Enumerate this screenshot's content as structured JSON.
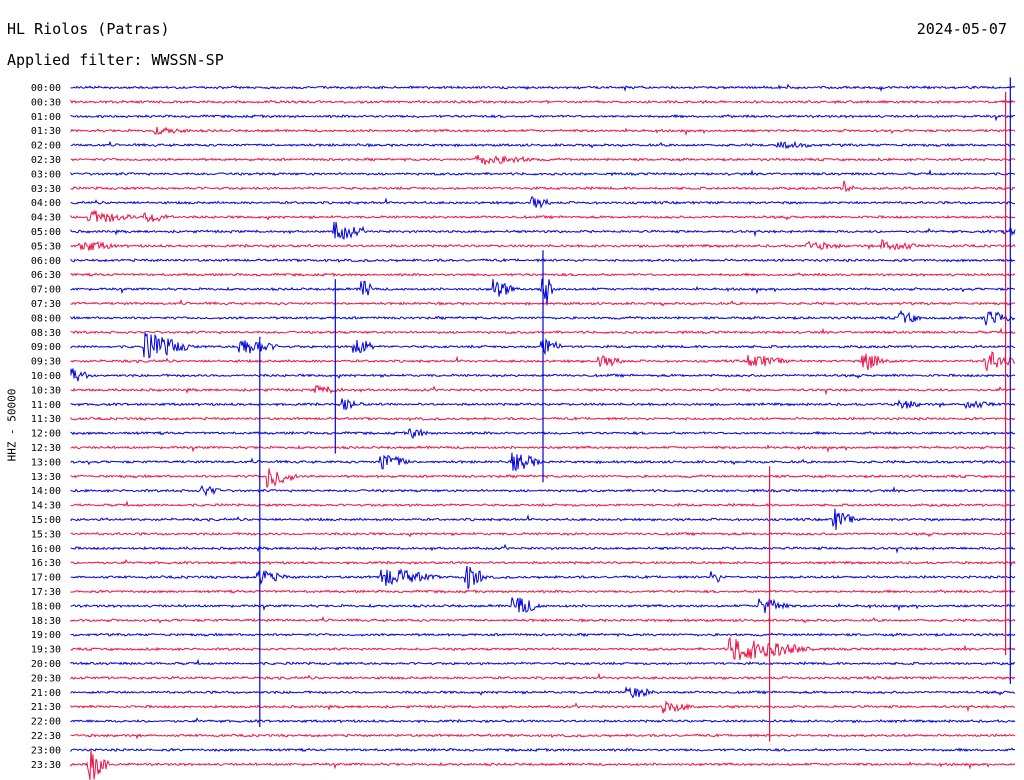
{
  "header": {
    "station": "HL Riolos (Patras)",
    "date": "2024-05-07",
    "filter_label": "Applied filter: WWSSN-SP"
  },
  "axis": {
    "ylabel": "HHZ - 50000"
  },
  "colors": {
    "even_hour": "#0000dd",
    "half_hour": "#ee1144",
    "background": "#ffffff",
    "text": "#000000"
  },
  "chart_data": {
    "type": "seismogram-helicorder",
    "rows": [
      "00:00",
      "00:30",
      "01:00",
      "01:30",
      "02:00",
      "02:30",
      "03:00",
      "03:30",
      "04:00",
      "04:30",
      "05:00",
      "05:30",
      "06:00",
      "06:30",
      "07:00",
      "07:30",
      "08:00",
      "08:30",
      "09:00",
      "09:30",
      "10:00",
      "10:30",
      "11:00",
      "11:30",
      "12:00",
      "12:30",
      "13:00",
      "13:30",
      "14:00",
      "14:30",
      "15:00",
      "15:30",
      "16:00",
      "16:30",
      "17:00",
      "17:30",
      "18:00",
      "18:30",
      "19:00",
      "19:30",
      "20:00",
      "20:30",
      "21:00",
      "21:30",
      "22:00",
      "22:30",
      "23:00",
      "23:30"
    ],
    "row_minutes": 30,
    "events": [
      {
        "row": "01:30",
        "t": 0.09,
        "amp": 0.3,
        "dur": 0.04
      },
      {
        "row": "02:00",
        "t": 0.75,
        "amp": 0.3,
        "dur": 0.04
      },
      {
        "row": "02:30",
        "t": 0.43,
        "amp": 0.5,
        "dur": 0.07
      },
      {
        "row": "03:30",
        "t": 0.82,
        "amp": 0.7,
        "dur": 0.01
      },
      {
        "row": "04:00",
        "t": 0.49,
        "amp": 0.6,
        "dur": 0.02
      },
      {
        "row": "04:30",
        "t": 0.02,
        "amp": 0.7,
        "dur": 0.05
      },
      {
        "row": "04:30",
        "t": 0.08,
        "amp": 0.6,
        "dur": 0.03
      },
      {
        "row": "05:00",
        "t": 0.28,
        "amp": 1.0,
        "dur": 0.03
      },
      {
        "row": "05:00",
        "t": 0.99,
        "amp": 0.6,
        "dur": 0.01
      },
      {
        "row": "05:30",
        "t": 0.01,
        "amp": 0.6,
        "dur": 0.04
      },
      {
        "row": "05:30",
        "t": 0.78,
        "amp": 0.4,
        "dur": 0.04
      },
      {
        "row": "05:30",
        "t": 0.86,
        "amp": 0.6,
        "dur": 0.04
      },
      {
        "row": "07:00",
        "t": 0.45,
        "amp": 1.0,
        "dur": 0.02
      },
      {
        "row": "07:00",
        "t": 0.5,
        "amp": 2.5,
        "dur": 0.01
      },
      {
        "row": "07:00",
        "t": 0.31,
        "amp": 1.2,
        "dur": 0.01
      },
      {
        "row": "08:00",
        "t": 0.88,
        "amp": 0.7,
        "dur": 0.02
      },
      {
        "row": "08:00",
        "t": 0.97,
        "amp": 0.9,
        "dur": 0.03
      },
      {
        "row": "09:00",
        "t": 0.08,
        "amp": 1.4,
        "dur": 0.05
      },
      {
        "row": "09:00",
        "t": 0.18,
        "amp": 1.0,
        "dur": 0.04
      },
      {
        "row": "09:00",
        "t": 0.3,
        "amp": 1.2,
        "dur": 0.02
      },
      {
        "row": "09:00",
        "t": 0.5,
        "amp": 1.0,
        "dur": 0.02
      },
      {
        "row": "09:30",
        "t": 0.56,
        "amp": 0.6,
        "dur": 0.03
      },
      {
        "row": "09:30",
        "t": 0.72,
        "amp": 0.7,
        "dur": 0.04
      },
      {
        "row": "09:30",
        "t": 0.84,
        "amp": 1.0,
        "dur": 0.03
      },
      {
        "row": "09:30",
        "t": 0.97,
        "amp": 1.1,
        "dur": 0.03
      },
      {
        "row": "10:00",
        "t": 0.0,
        "amp": 0.8,
        "dur": 0.02
      },
      {
        "row": "10:30",
        "t": 0.26,
        "amp": 0.4,
        "dur": 0.03
      },
      {
        "row": "11:00",
        "t": 0.29,
        "amp": 0.5,
        "dur": 0.02
      },
      {
        "row": "11:00",
        "t": 0.88,
        "amp": 0.5,
        "dur": 0.02
      },
      {
        "row": "11:00",
        "t": 0.95,
        "amp": 0.4,
        "dur": 0.03
      },
      {
        "row": "12:00",
        "t": 0.36,
        "amp": 0.5,
        "dur": 0.02
      },
      {
        "row": "13:00",
        "t": 0.33,
        "amp": 0.9,
        "dur": 0.03
      },
      {
        "row": "13:00",
        "t": 0.47,
        "amp": 1.0,
        "dur": 0.03
      },
      {
        "row": "13:30",
        "t": 0.21,
        "amp": 1.2,
        "dur": 0.03
      },
      {
        "row": "14:00",
        "t": 0.14,
        "amp": 0.5,
        "dur": 0.02
      },
      {
        "row": "15:00",
        "t": 0.81,
        "amp": 1.1,
        "dur": 0.02
      },
      {
        "row": "17:00",
        "t": 0.2,
        "amp": 0.7,
        "dur": 0.03
      },
      {
        "row": "17:00",
        "t": 0.33,
        "amp": 1.0,
        "dur": 0.06
      },
      {
        "row": "17:00",
        "t": 0.42,
        "amp": 1.4,
        "dur": 0.02
      },
      {
        "row": "17:00",
        "t": 0.68,
        "amp": 0.8,
        "dur": 0.01
      },
      {
        "row": "18:00",
        "t": 0.47,
        "amp": 1.0,
        "dur": 0.03
      },
      {
        "row": "18:00",
        "t": 0.73,
        "amp": 1.0,
        "dur": 0.03
      },
      {
        "row": "19:30",
        "t": 0.7,
        "amp": 1.3,
        "dur": 0.09
      },
      {
        "row": "21:00",
        "t": 0.59,
        "amp": 0.6,
        "dur": 0.03
      },
      {
        "row": "21:30",
        "t": 0.63,
        "amp": 0.6,
        "dur": 0.03
      },
      {
        "row": "23:30",
        "t": 0.02,
        "amp": 2.0,
        "dur": 0.02
      }
    ],
    "long_spikes": [
      {
        "t": 0.995,
        "from": "00:00",
        "to": "20:30"
      },
      {
        "t": 0.99,
        "from": "00:30",
        "to": "19:30"
      },
      {
        "t": 0.2,
        "from": "09:00",
        "to": "22:00"
      },
      {
        "t": 0.28,
        "from": "07:00",
        "to": "12:30"
      },
      {
        "t": 0.5,
        "from": "06:00",
        "to": "13:30"
      },
      {
        "t": 0.74,
        "from": "13:30",
        "to": "22:30"
      }
    ]
  }
}
